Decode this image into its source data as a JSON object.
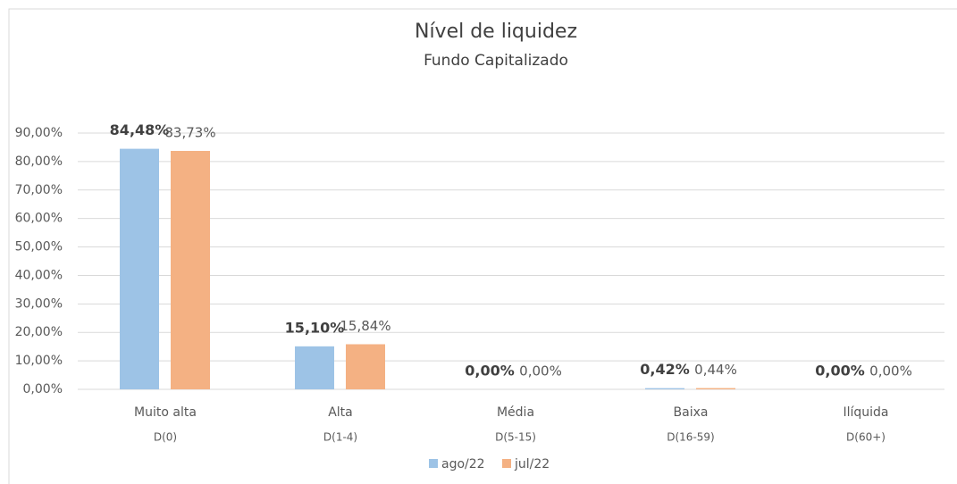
{
  "chart_data": {
    "type": "bar",
    "title": "Nível de liquidez",
    "subtitle": "Fundo Capitalizado",
    "categories": [
      "Muito alta",
      "Alta",
      "Média",
      "Baixa",
      "Ilíquida"
    ],
    "subcategories": [
      "D(0)",
      "D(1-4)",
      "D(5-15)",
      "D(16-59)",
      "D(60+)"
    ],
    "series": [
      {
        "name": "ago/22",
        "color": "#9dc3e6",
        "values": [
          84.48,
          15.1,
          0,
          0.42,
          0
        ],
        "value_labels": [
          "84,48%",
          "15,10%",
          "0,00%",
          "0,42%",
          "0,00%"
        ]
      },
      {
        "name": "jul/22",
        "color": "#f4b183",
        "values": [
          83.73,
          15.84,
          0,
          0.44,
          0
        ],
        "value_labels": [
          "83,73%",
          "15,84%",
          "0,00%",
          "0,44%",
          "0,00%"
        ]
      }
    ],
    "ylim": [
      0,
      90
    ],
    "yticks": [
      {
        "value": 0,
        "label": "0,00%"
      },
      {
        "value": 10,
        "label": "10,00%"
      },
      {
        "value": 20,
        "label": "20,00%"
      },
      {
        "value": 30,
        "label": "30,00%"
      },
      {
        "value": 40,
        "label": "40,00%"
      },
      {
        "value": 50,
        "label": "50,00%"
      },
      {
        "value": 60,
        "label": "60,00%"
      },
      {
        "value": 70,
        "label": "70,00%"
      },
      {
        "value": 80,
        "label": "80,00%"
      },
      {
        "value": 90,
        "label": "90,00%"
      }
    ],
    "grid": true,
    "legend": "bottom"
  }
}
